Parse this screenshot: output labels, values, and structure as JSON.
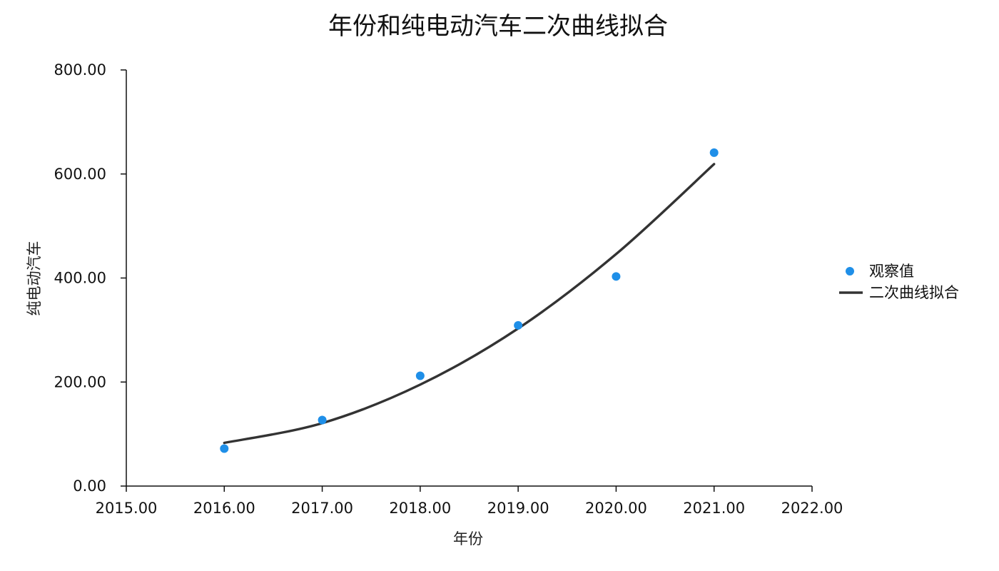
{
  "chart_data": {
    "type": "scatter",
    "title": "年份和纯电动汽车二次曲线拟合",
    "xlabel": "年份",
    "ylabel": "纯电动汽车",
    "xlim": [
      2015,
      2022
    ],
    "ylim": [
      0,
      800
    ],
    "x_ticks": [
      2015,
      2016,
      2017,
      2018,
      2019,
      2020,
      2021,
      2022
    ],
    "y_ticks": [
      0,
      200,
      400,
      600,
      800
    ],
    "x_tick_labels": [
      "2015.00",
      "2016.00",
      "2017.00",
      "2018.00",
      "2019.00",
      "2020.00",
      "2021.00",
      "2022.00"
    ],
    "y_tick_labels": [
      "0.00",
      "200.00",
      "400.00",
      "600.00",
      "800.00"
    ],
    "grid": false,
    "legend_position": "right",
    "series": [
      {
        "name": "观察值",
        "kind": "scatter",
        "color": "#1f8fe8",
        "x": [
          2016,
          2017,
          2018,
          2019,
          2020,
          2021
        ],
        "y": [
          72,
          127,
          212,
          309,
          403,
          641
        ]
      },
      {
        "name": "二次曲线拟合",
        "kind": "line",
        "color": "#333333",
        "x": [
          2016,
          2017,
          2018,
          2019,
          2020,
          2021
        ],
        "y": [
          83,
          121,
          195,
          303,
          446,
          619
        ]
      }
    ]
  }
}
